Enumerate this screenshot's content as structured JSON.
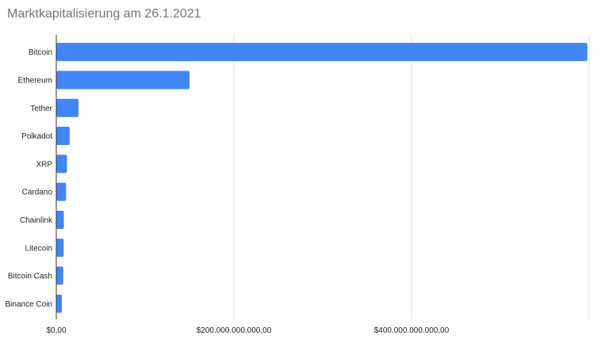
{
  "chart_data": {
    "type": "bar",
    "orientation": "horizontal",
    "title": "Marktkapitalisierung am 26.1.2021",
    "xlabel": "",
    "ylabel": "",
    "categories": [
      "Bitcoin",
      "Ethereum",
      "Tether",
      "Polkadot",
      "XRP",
      "Cardano",
      "Chainlink",
      "Litecoin",
      "Bitcoin Cash",
      "Binance Coin"
    ],
    "values": [
      598000000000,
      150000000000,
      25000000000,
      15000000000,
      12000000000,
      11000000000,
      8500000000,
      8300000000,
      7800000000,
      6300000000
    ],
    "xlim": [
      0,
      600000000000
    ],
    "x_ticks": [
      0,
      200000000000,
      400000000000,
      600000000000
    ],
    "x_tick_labels": [
      "$0,00",
      "$200.000.000.000,00",
      "$400.000.000.000,00",
      ""
    ],
    "grid": true,
    "legend": "none",
    "bar_color": "#4285f4",
    "grid_color": "#e0e0e0",
    "axis_color": "#333333"
  }
}
